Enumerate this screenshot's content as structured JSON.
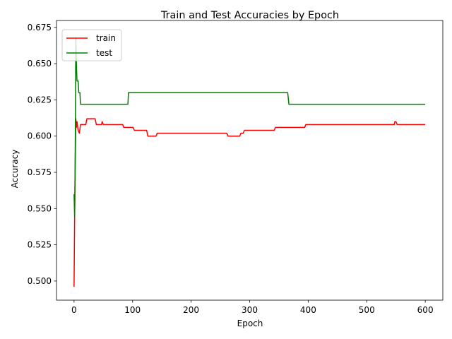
{
  "chart_data": {
    "type": "line",
    "title": "Train and Test Accuracies by Epoch",
    "xlabel": "Epoch",
    "ylabel": "Accuracy",
    "xlim": [
      -30,
      630
    ],
    "ylim": [
      0.4868,
      0.6798
    ],
    "xticks": [
      0,
      100,
      200,
      300,
      400,
      500,
      600
    ],
    "xtick_labels": [
      "0",
      "100",
      "200",
      "300",
      "400",
      "500",
      "600"
    ],
    "yticks": [
      0.5,
      0.525,
      0.55,
      0.575,
      0.6,
      0.625,
      0.65,
      0.675
    ],
    "ytick_labels": [
      "0.500",
      "0.525",
      "0.550",
      "0.575",
      "0.600",
      "0.625",
      "0.650",
      "0.675"
    ],
    "grid": false,
    "legend_position": "top-left",
    "series": [
      {
        "name": "train",
        "color": "#ff0000",
        "points": [
          [
            0,
            0.496
          ],
          [
            1,
            0.545
          ],
          [
            2,
            0.58
          ],
          [
            3,
            0.612
          ],
          [
            4,
            0.606
          ],
          [
            5,
            0.61
          ],
          [
            7,
            0.604
          ],
          [
            9,
            0.602
          ],
          [
            11,
            0.608
          ],
          [
            20,
            0.608
          ],
          [
            22,
            0.612
          ],
          [
            36,
            0.612
          ],
          [
            38,
            0.608
          ],
          [
            47,
            0.608
          ],
          [
            48,
            0.61
          ],
          [
            50,
            0.608
          ],
          [
            83,
            0.608
          ],
          [
            85,
            0.606
          ],
          [
            101,
            0.606
          ],
          [
            103,
            0.604
          ],
          [
            124,
            0.604
          ],
          [
            126,
            0.6
          ],
          [
            140,
            0.6
          ],
          [
            142,
            0.602
          ],
          [
            261,
            0.602
          ],
          [
            263,
            0.6
          ],
          [
            283,
            0.6
          ],
          [
            285,
            0.602
          ],
          [
            289,
            0.602
          ],
          [
            291,
            0.604
          ],
          [
            342,
            0.604
          ],
          [
            344,
            0.606
          ],
          [
            394,
            0.606
          ],
          [
            396,
            0.608
          ],
          [
            547,
            0.608
          ],
          [
            548,
            0.61
          ],
          [
            550,
            0.61
          ],
          [
            552,
            0.608
          ],
          [
            600,
            0.608
          ]
        ]
      },
      {
        "name": "test",
        "color": "#008000",
        "points": [
          [
            0,
            0.56
          ],
          [
            1,
            0.544
          ],
          [
            2,
            0.59
          ],
          [
            3,
            0.668
          ],
          [
            4,
            0.65
          ],
          [
            5,
            0.638
          ],
          [
            7,
            0.638
          ],
          [
            8,
            0.63
          ],
          [
            10,
            0.63
          ],
          [
            11,
            0.622
          ],
          [
            92,
            0.622
          ],
          [
            93,
            0.63
          ],
          [
            365,
            0.63
          ],
          [
            367,
            0.622
          ],
          [
            600,
            0.622
          ]
        ]
      }
    ]
  }
}
